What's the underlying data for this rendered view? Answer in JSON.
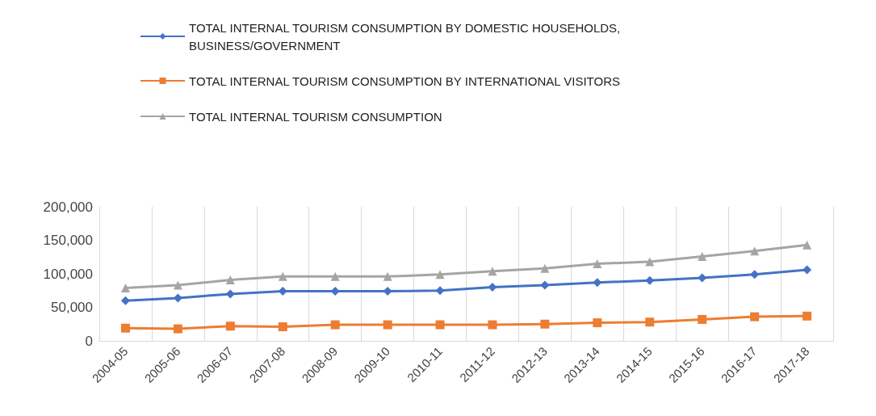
{
  "chart_data": {
    "type": "line",
    "categories": [
      "2004-05",
      "2005-06",
      "2006-07",
      "2007-08",
      "2008-09",
      "2009-10",
      "2010-11",
      "2011-12",
      "2012-13",
      "2013-14",
      "2014-15",
      "2015-16",
      "2016-17",
      "2017-18"
    ],
    "series": [
      {
        "name": "TOTAL INTERNAL TOURISM CONSUMPTION BY DOMESTIC HOUSEHOLDS, BUSINESS/GOVERNMENT",
        "color": "#4472c4",
        "marker": "diamond",
        "values": [
          60000,
          64000,
          70000,
          74000,
          74000,
          74000,
          75000,
          80000,
          83000,
          87000,
          90000,
          94000,
          99000,
          106000
        ]
      },
      {
        "name": "TOTAL INTERNAL TOURISM CONSUMPTION BY INTERNATIONAL VISITORS",
        "color": "#ed7d31",
        "marker": "square",
        "values": [
          19000,
          18000,
          22000,
          21000,
          24000,
          24000,
          24000,
          24000,
          25000,
          27000,
          28000,
          32000,
          36000,
          37000
        ]
      },
      {
        "name": "TOTAL INTERNAL TOURISM CONSUMPTION",
        "color": "#a5a5a5",
        "marker": "triangle",
        "values": [
          79000,
          83000,
          91000,
          96000,
          96000,
          96000,
          99000,
          104000,
          108000,
          115000,
          118000,
          126000,
          134000,
          143000
        ]
      }
    ],
    "ylim": [
      0,
      200000
    ],
    "yticks": [
      0,
      {
        "value": 50000,
        "label": "50,000"
      },
      {
        "value": 100000,
        "label": "100,000"
      },
      {
        "value": 150000,
        "label": "150,000"
      },
      {
        "value": 200000,
        "label": "200,000"
      }
    ],
    "grid": "x",
    "legend": "top"
  }
}
